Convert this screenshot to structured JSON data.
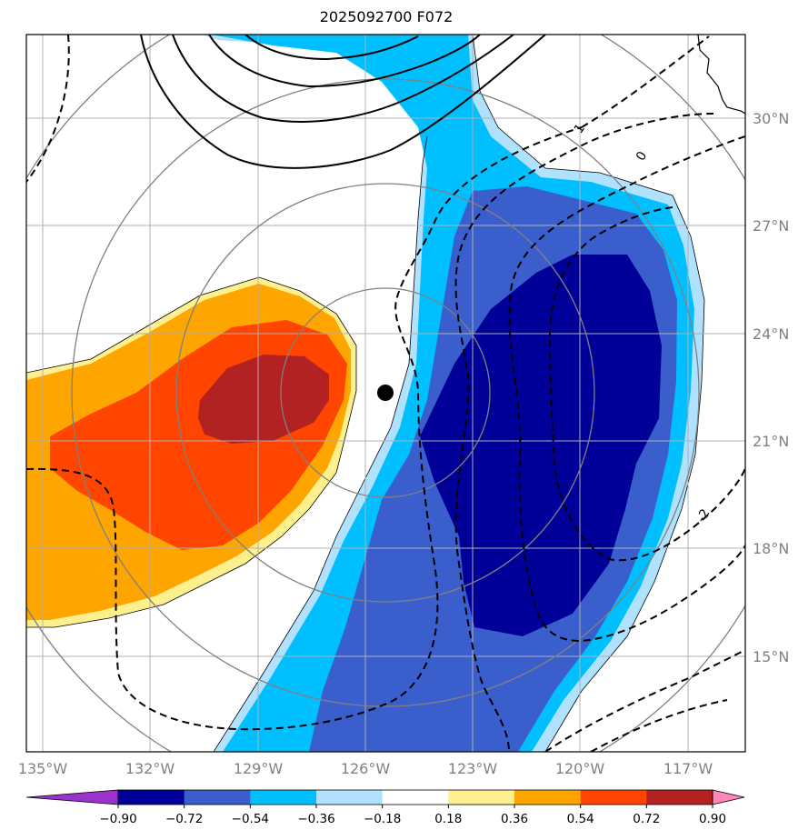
{
  "title": "2025092700 F072",
  "lat_ticks": [
    "30°N",
    "27°N",
    "24°N",
    "21°N",
    "18°N",
    "15°N"
  ],
  "lon_ticks": [
    "135°W",
    "132°W",
    "129°W",
    "126°W",
    "123°W",
    "120°W",
    "117°W"
  ],
  "colorbar": {
    "labels": [
      "−0.90",
      "−0.72",
      "−0.54",
      "−0.36",
      "−0.18",
      "0.18",
      "0.36",
      "0.54",
      "0.72",
      "0.90"
    ],
    "colors": [
      "#9933cc",
      "#000099",
      "#3a5fcd",
      "#00bfff",
      "#b0e2ff",
      "#ffffff",
      "#fff08f",
      "#ffa500",
      "#ff4500",
      "#b22222",
      "#ff88b8"
    ]
  },
  "contour_labels": [
    "1",
    "0",
    "-2"
  ],
  "center_marker": "storm-center"
}
